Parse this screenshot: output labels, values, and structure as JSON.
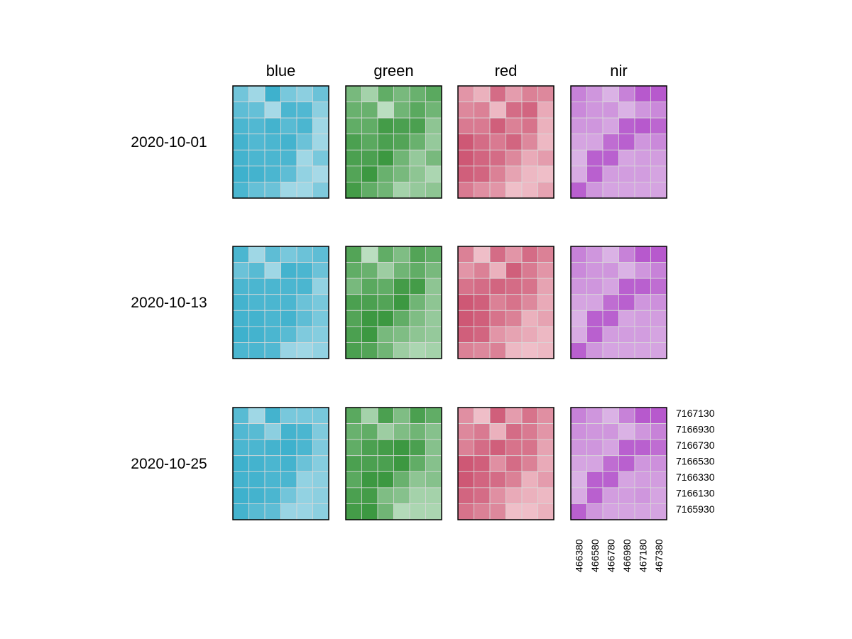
{
  "chart_data": {
    "type": "heatmap",
    "bands": [
      "blue",
      "green",
      "red",
      "nir"
    ],
    "dates": [
      "2020-10-01",
      "2020-10-13",
      "2020-10-25"
    ],
    "x_ticks": [
      "466380",
      "466580",
      "466780",
      "466980",
      "467180",
      "467380"
    ],
    "y_ticks": [
      "7167130",
      "7166930",
      "7166730",
      "7166530",
      "7166330",
      "7166130",
      "7165930"
    ],
    "grid_shape": [
      7,
      6
    ],
    "colors": {
      "blue": [
        "#b9e1ec",
        "#37aecb"
      ],
      "green": [
        "#c9e6cf",
        "#359439"
      ],
      "red": [
        "#f6d3d9",
        "#c94a6a"
      ],
      "nir": [
        "#e8d4ee",
        "#b14bc9"
      ]
    },
    "values": {
      "blue": [
        [
          [
            0.55,
            0.2,
            0.95,
            0.5,
            0.35,
            0.6
          ],
          [
            0.7,
            0.65,
            0.15,
            0.85,
            0.8,
            0.35
          ],
          [
            0.85,
            0.8,
            0.9,
            0.75,
            0.85,
            0.2
          ],
          [
            0.9,
            0.8,
            0.85,
            0.9,
            0.6,
            0.2
          ],
          [
            0.9,
            0.85,
            0.85,
            0.85,
            0.2,
            0.5
          ],
          [
            0.95,
            0.9,
            0.85,
            0.7,
            0.3,
            0.15
          ],
          [
            0.85,
            0.65,
            0.6,
            0.2,
            0.2,
            0.45
          ]
        ],
        [
          [
            0.85,
            0.2,
            0.7,
            0.5,
            0.6,
            0.7
          ],
          [
            0.6,
            0.75,
            0.2,
            0.9,
            0.85,
            0.6
          ],
          [
            0.85,
            0.85,
            0.85,
            0.85,
            0.85,
            0.3
          ],
          [
            0.9,
            0.85,
            0.85,
            0.85,
            0.6,
            0.5
          ],
          [
            0.9,
            0.9,
            0.85,
            0.9,
            0.7,
            0.5
          ],
          [
            0.95,
            0.9,
            0.85,
            0.75,
            0.45,
            0.4
          ],
          [
            0.85,
            0.85,
            0.8,
            0.25,
            0.2,
            0.3
          ]
        ],
        [
          [
            0.75,
            0.2,
            0.9,
            0.5,
            0.5,
            0.5
          ],
          [
            0.8,
            0.75,
            0.35,
            0.9,
            0.85,
            0.45
          ],
          [
            0.85,
            0.85,
            0.9,
            0.95,
            0.85,
            0.45
          ],
          [
            0.95,
            0.9,
            0.85,
            0.9,
            0.6,
            0.4
          ],
          [
            0.9,
            0.9,
            0.85,
            0.85,
            0.3,
            0.35
          ],
          [
            0.95,
            0.9,
            0.85,
            0.55,
            0.3,
            0.35
          ],
          [
            0.9,
            0.75,
            0.7,
            0.25,
            0.25,
            0.35
          ]
        ]
      ],
      "green": [
        [
          [
            0.55,
            0.25,
            0.7,
            0.55,
            0.65,
            0.75
          ],
          [
            0.65,
            0.65,
            0.1,
            0.6,
            0.75,
            0.6
          ],
          [
            0.7,
            0.7,
            0.9,
            0.85,
            0.85,
            0.4
          ],
          [
            0.85,
            0.75,
            0.85,
            0.8,
            0.65,
            0.35
          ],
          [
            0.85,
            0.85,
            0.95,
            0.6,
            0.35,
            0.55
          ],
          [
            0.8,
            0.95,
            0.65,
            0.55,
            0.4,
            0.2
          ],
          [
            0.9,
            0.7,
            0.6,
            0.25,
            0.35,
            0.4
          ]
        ],
        [
          [
            0.8,
            0.1,
            0.7,
            0.5,
            0.8,
            0.7
          ],
          [
            0.7,
            0.65,
            0.3,
            0.6,
            0.7,
            0.55
          ],
          [
            0.55,
            0.75,
            0.7,
            0.9,
            0.9,
            0.4
          ],
          [
            0.85,
            0.85,
            0.8,
            0.95,
            0.6,
            0.4
          ],
          [
            0.8,
            0.95,
            0.95,
            0.7,
            0.5,
            0.35
          ],
          [
            0.85,
            0.95,
            0.55,
            0.5,
            0.4,
            0.35
          ],
          [
            0.85,
            0.8,
            0.6,
            0.3,
            0.2,
            0.25
          ]
        ],
        [
          [
            0.75,
            0.25,
            0.85,
            0.5,
            0.85,
            0.7
          ],
          [
            0.65,
            0.7,
            0.3,
            0.5,
            0.6,
            0.45
          ],
          [
            0.7,
            0.85,
            0.9,
            0.95,
            0.85,
            0.45
          ],
          [
            0.85,
            0.85,
            0.85,
            0.95,
            0.7,
            0.45
          ],
          [
            0.75,
            0.95,
            0.95,
            0.65,
            0.4,
            0.45
          ],
          [
            0.85,
            0.9,
            0.5,
            0.45,
            0.25,
            0.25
          ],
          [
            0.9,
            0.95,
            0.6,
            0.15,
            0.2,
            0.2
          ]
        ]
      ],
      "red": [
        [
          [
            0.45,
            0.25,
            0.75,
            0.4,
            0.6,
            0.55
          ],
          [
            0.55,
            0.6,
            0.2,
            0.75,
            0.8,
            0.3
          ],
          [
            0.65,
            0.65,
            0.85,
            0.6,
            0.7,
            0.25
          ],
          [
            0.9,
            0.75,
            0.65,
            0.8,
            0.55,
            0.2
          ],
          [
            0.9,
            0.8,
            0.75,
            0.55,
            0.3,
            0.4
          ],
          [
            0.85,
            0.8,
            0.6,
            0.35,
            0.2,
            0.15
          ],
          [
            0.65,
            0.5,
            0.45,
            0.15,
            0.2,
            0.35
          ]
        ],
        [
          [
            0.6,
            0.15,
            0.75,
            0.45,
            0.75,
            0.6
          ],
          [
            0.45,
            0.6,
            0.25,
            0.85,
            0.65,
            0.45
          ],
          [
            0.7,
            0.75,
            0.8,
            0.75,
            0.7,
            0.35
          ],
          [
            0.9,
            0.85,
            0.6,
            0.7,
            0.55,
            0.3
          ],
          [
            0.9,
            0.85,
            0.7,
            0.6,
            0.25,
            0.35
          ],
          [
            0.85,
            0.8,
            0.45,
            0.35,
            0.3,
            0.2
          ],
          [
            0.6,
            0.55,
            0.6,
            0.2,
            0.15,
            0.2
          ]
        ],
        [
          [
            0.5,
            0.15,
            0.85,
            0.4,
            0.7,
            0.5
          ],
          [
            0.55,
            0.65,
            0.25,
            0.75,
            0.65,
            0.45
          ],
          [
            0.6,
            0.75,
            0.85,
            0.7,
            0.7,
            0.35
          ],
          [
            0.9,
            0.85,
            0.5,
            0.75,
            0.6,
            0.3
          ],
          [
            0.9,
            0.8,
            0.75,
            0.6,
            0.25,
            0.4
          ],
          [
            0.8,
            0.75,
            0.5,
            0.3,
            0.25,
            0.2
          ],
          [
            0.7,
            0.6,
            0.55,
            0.15,
            0.15,
            0.25
          ]
        ]
      ],
      "nir": [
        [
          [
            0.6,
            0.45,
            0.25,
            0.6,
            0.9,
            0.9
          ],
          [
            0.55,
            0.45,
            0.45,
            0.25,
            0.45,
            0.55
          ],
          [
            0.45,
            0.45,
            0.35,
            0.85,
            0.9,
            0.8
          ],
          [
            0.35,
            0.35,
            0.75,
            0.85,
            0.45,
            0.55
          ],
          [
            0.25,
            0.85,
            0.85,
            0.35,
            0.4,
            0.4
          ],
          [
            0.3,
            0.85,
            0.4,
            0.4,
            0.4,
            0.35
          ],
          [
            0.85,
            0.45,
            0.35,
            0.35,
            0.35,
            0.35
          ]
        ],
        [
          [
            0.6,
            0.45,
            0.25,
            0.6,
            0.9,
            0.9
          ],
          [
            0.55,
            0.45,
            0.45,
            0.25,
            0.45,
            0.6
          ],
          [
            0.45,
            0.45,
            0.35,
            0.85,
            0.85,
            0.75
          ],
          [
            0.35,
            0.35,
            0.75,
            0.85,
            0.45,
            0.5
          ],
          [
            0.25,
            0.85,
            0.85,
            0.35,
            0.4,
            0.4
          ],
          [
            0.3,
            0.85,
            0.4,
            0.4,
            0.4,
            0.35
          ],
          [
            0.85,
            0.45,
            0.35,
            0.35,
            0.35,
            0.35
          ]
        ],
        [
          [
            0.6,
            0.45,
            0.25,
            0.6,
            0.9,
            0.9
          ],
          [
            0.5,
            0.45,
            0.45,
            0.25,
            0.45,
            0.6
          ],
          [
            0.45,
            0.45,
            0.35,
            0.85,
            0.85,
            0.75
          ],
          [
            0.35,
            0.35,
            0.75,
            0.85,
            0.45,
            0.5
          ],
          [
            0.25,
            0.85,
            0.85,
            0.35,
            0.4,
            0.4
          ],
          [
            0.3,
            0.85,
            0.4,
            0.4,
            0.45,
            0.35
          ],
          [
            0.85,
            0.45,
            0.35,
            0.35,
            0.35,
            0.35
          ]
        ]
      ]
    }
  }
}
